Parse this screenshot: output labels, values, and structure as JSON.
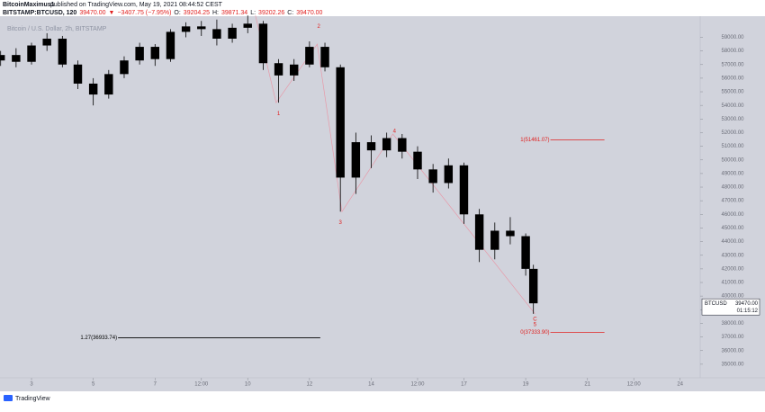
{
  "header": {
    "publisher": "BitcoinMaximus1",
    "published": "published on TradingView.com, May 19, 2021 08:44:52 CEST",
    "symbol_line": [
      {
        "text": "BITSTAMP:BTCUSD, 120",
        "color": "#131722"
      },
      {
        "text": "39470.00",
        "color": "#e0201f"
      },
      {
        "text": "▼",
        "color": "#e0201f"
      },
      {
        "text": "−3407.75 (−7.95%)",
        "color": "#e0201f"
      },
      {
        "text": "O:",
        "color": "#131722"
      },
      {
        "text": "39204.25",
        "color": "#e0201f"
      },
      {
        "text": "H:",
        "color": "#131722"
      },
      {
        "text": "39871.34",
        "color": "#e0201f"
      },
      {
        "text": "L:",
        "color": "#131722"
      },
      {
        "text": "39202.26",
        "color": "#e0201f"
      },
      {
        "text": "C:",
        "color": "#131722"
      },
      {
        "text": "39470.00",
        "color": "#e0201f"
      }
    ]
  },
  "footer": {
    "brand": "TradingView"
  },
  "chart_data": {
    "type": "candlestick",
    "legend": "Bitcoin / U.S. Dollar, 2h, BITSTAMP",
    "color": "#000000",
    "x": [
      2.0,
      2.5,
      3.0,
      3.5,
      4.0,
      4.5,
      5.0,
      5.5,
      6.0,
      6.5,
      7.0,
      7.5,
      8.0,
      8.5,
      9.0,
      9.5,
      10.0,
      10.5,
      11.0,
      11.5,
      12.0,
      12.5,
      13.0,
      13.5,
      14.0,
      14.5,
      15.0,
      15.5,
      16.0,
      16.5,
      17.0,
      17.5,
      18.0,
      18.5,
      19.0,
      19.25
    ],
    "open": [
      57300,
      57700,
      57200,
      58400,
      58900,
      57000,
      55600,
      54800,
      56300,
      57300,
      58300,
      57400,
      59400,
      59800,
      59600,
      58900,
      59700,
      60000,
      57100,
      56200,
      57000,
      58300,
      56800,
      48700,
      51300,
      50700,
      51600,
      50600,
      49300,
      48300,
      49600,
      46000,
      43400,
      44800,
      44400,
      42000
    ],
    "high": [
      58000,
      58200,
      58600,
      59300,
      59100,
      57300,
      56000,
      56600,
      57600,
      58600,
      58500,
      59600,
      60100,
      60200,
      60300,
      60000,
      60600,
      60200,
      57400,
      57400,
      58700,
      58600,
      57000,
      52000,
      51800,
      52000,
      51900,
      51000,
      49700,
      50100,
      49800,
      46400,
      45400,
      45800,
      44600,
      42300
    ],
    "low": [
      56900,
      56800,
      57000,
      58000,
      56800,
      55200,
      54000,
      54500,
      56000,
      57000,
      56900,
      57200,
      59000,
      59100,
      58400,
      58600,
      59300,
      56600,
      54200,
      55800,
      56800,
      56500,
      46200,
      47500,
      49400,
      50200,
      50100,
      48600,
      47600,
      47900,
      45300,
      42500,
      42700,
      43800,
      41500,
      38700
    ],
    "close": [
      57700,
      57200,
      58400,
      58900,
      57000,
      55600,
      54800,
      56300,
      57300,
      58300,
      57400,
      59400,
      59800,
      59600,
      58900,
      59700,
      60000,
      57100,
      56200,
      57000,
      58300,
      56800,
      48700,
      51300,
      50700,
      51600,
      50600,
      49300,
      48300,
      49600,
      46000,
      43400,
      44800,
      44400,
      42000,
      39470
    ],
    "xlim": [
      2,
      24.65
    ],
    "xticks": [
      {
        "value": 3,
        "label": "3"
      },
      {
        "value": 5,
        "label": "5"
      },
      {
        "value": 7,
        "label": "7"
      },
      {
        "value": 8.5,
        "label": "12:00"
      },
      {
        "value": 10,
        "label": "10"
      },
      {
        "value": 12,
        "label": "12"
      },
      {
        "value": 14,
        "label": "14"
      },
      {
        "value": 15.5,
        "label": "12:00"
      },
      {
        "value": 17,
        "label": "17"
      },
      {
        "value": 19,
        "label": "19"
      },
      {
        "value": 21,
        "label": "21"
      },
      {
        "value": 22.5,
        "label": "12:00"
      },
      {
        "value": 24,
        "label": "24"
      }
    ],
    "ylim": [
      34000,
      60550
    ],
    "yticks": [
      {
        "value": 35000,
        "label": "35000.00"
      },
      {
        "value": 36000,
        "label": "36000.00"
      },
      {
        "value": 37000,
        "label": "37000.00"
      },
      {
        "value": 38000,
        "label": "38000.00"
      },
      {
        "value": 39000,
        "label": "39000.00"
      },
      {
        "value": 40000,
        "label": "40000.00"
      },
      {
        "value": 41000,
        "label": "41000.00"
      },
      {
        "value": 42000,
        "label": "42000.00"
      },
      {
        "value": 43000,
        "label": "43000.00"
      },
      {
        "value": 44000,
        "label": "44000.00"
      },
      {
        "value": 45000,
        "label": "45000.00"
      },
      {
        "value": 46000,
        "label": "46000.00"
      },
      {
        "value": 47000,
        "label": "47000.00"
      },
      {
        "value": 48000,
        "label": "48000.00"
      },
      {
        "value": 49000,
        "label": "49000.00"
      },
      {
        "value": 50000,
        "label": "50000.00"
      },
      {
        "value": 51000,
        "label": "51000.00"
      },
      {
        "value": 52000,
        "label": "52000.00"
      },
      {
        "value": 53000,
        "label": "53000.00"
      },
      {
        "value": 54000,
        "label": "54000.00"
      },
      {
        "value": 55000,
        "label": "55000.00"
      },
      {
        "value": 56000,
        "label": "56000.00"
      },
      {
        "value": 57000,
        "label": "57000.00"
      },
      {
        "value": 58000,
        "label": "58000.00"
      },
      {
        "value": 59000,
        "label": "59000.00"
      }
    ],
    "wave_color": "#e0201f",
    "waves": [
      {
        "label": "1",
        "x": 11.0,
        "y": 53400
      },
      {
        "label": "2",
        "x": 12.3,
        "y": 59800
      },
      {
        "label": "3",
        "x": 13.0,
        "y": 45400
      },
      {
        "label": "4",
        "x": 14.75,
        "y": 52100
      },
      {
        "label": "C",
        "x": 19.3,
        "y": 38300
      },
      {
        "label": "5",
        "x": 19.3,
        "y": 37900
      }
    ],
    "wave_path": {
      "x": [
        10.25,
        10.92,
        12.25,
        13.05,
        14.7,
        19.3
      ],
      "y": [
        60600,
        54200,
        58500,
        46200,
        51900,
        38700
      ]
    },
    "fib_levels": [
      {
        "label": "1(51461.07)",
        "value": 51461.07,
        "color": "#e0201f",
        "from": 19.8,
        "to": 21.55
      },
      {
        "label": "0(37333.90)",
        "value": 37333.9,
        "color": "#e0201f",
        "from": 19.8,
        "to": 21.55
      },
      {
        "label": "1.27(36933.74)",
        "value": 36933.74,
        "color": "#000000",
        "from": 5.8,
        "to": 12.35
      }
    ],
    "last_symbol": "BTCUSD",
    "last_price": {
      "value": 39470,
      "label": "39470.00"
    },
    "countdown": "01:15:12"
  }
}
